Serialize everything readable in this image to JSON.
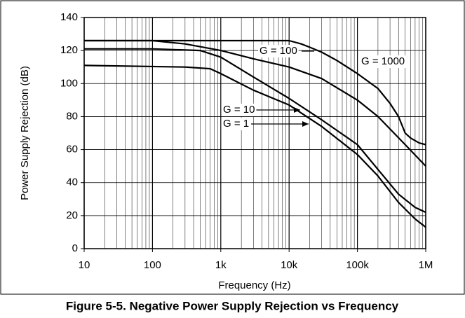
{
  "chart_data": {
    "type": "line",
    "title": "Figure 5-5. Negative Power Supply Rejection vs Frequency",
    "x_label": "Frequency (Hz)",
    "y_label": "Power Supply Rejection (dB)",
    "log_x": true,
    "grid": true,
    "xlim": [
      10,
      1000000
    ],
    "xticks": [
      10,
      100,
      {
        "value": 1000,
        "label": "1k"
      },
      {
        "value": 10000,
        "label": "10k"
      },
      {
        "value": 100000,
        "label": "100k"
      },
      {
        "value": 1000000,
        "label": "1M"
      }
    ],
    "ylim": [
      0,
      140
    ],
    "yticks": [
      0,
      20,
      40,
      60,
      80,
      100,
      120,
      140
    ],
    "series": [
      {
        "name": "G = 1000",
        "color": "#000000",
        "x": [
          10,
          100,
          1000,
          10000,
          15000,
          20000,
          30000,
          50000,
          100000,
          200000,
          300000,
          400000,
          500000,
          600000,
          800000,
          1000000
        ],
        "values": [
          126,
          126,
          126,
          126,
          124,
          122,
          119,
          114,
          106,
          97,
          88,
          80,
          70,
          67,
          64,
          63
        ]
      },
      {
        "name": "G = 100",
        "color": "#000000",
        "x": [
          10,
          100,
          300,
          1000,
          3000,
          10000,
          30000,
          100000,
          200000,
          500000,
          1000000
        ],
        "values": [
          126,
          126,
          124,
          120,
          115,
          110,
          103,
          90,
          80,
          63,
          50
        ]
      },
      {
        "name": "G = 10",
        "color": "#000000",
        "x": [
          10,
          100,
          500,
          1000,
          3000,
          10000,
          30000,
          100000,
          200000,
          400000,
          700000,
          1000000
        ],
        "values": [
          121,
          121,
          120,
          116,
          104,
          91,
          78,
          63,
          48,
          33,
          25,
          22
        ]
      },
      {
        "name": "G = 1",
        "color": "#000000",
        "x": [
          10,
          300,
          700,
          1000,
          3000,
          10000,
          30000,
          100000,
          200000,
          400000,
          700000,
          1000000
        ],
        "values": [
          111,
          110,
          109,
          106,
          96,
          87,
          74,
          57,
          44,
          28,
          18,
          13
        ]
      }
    ]
  }
}
